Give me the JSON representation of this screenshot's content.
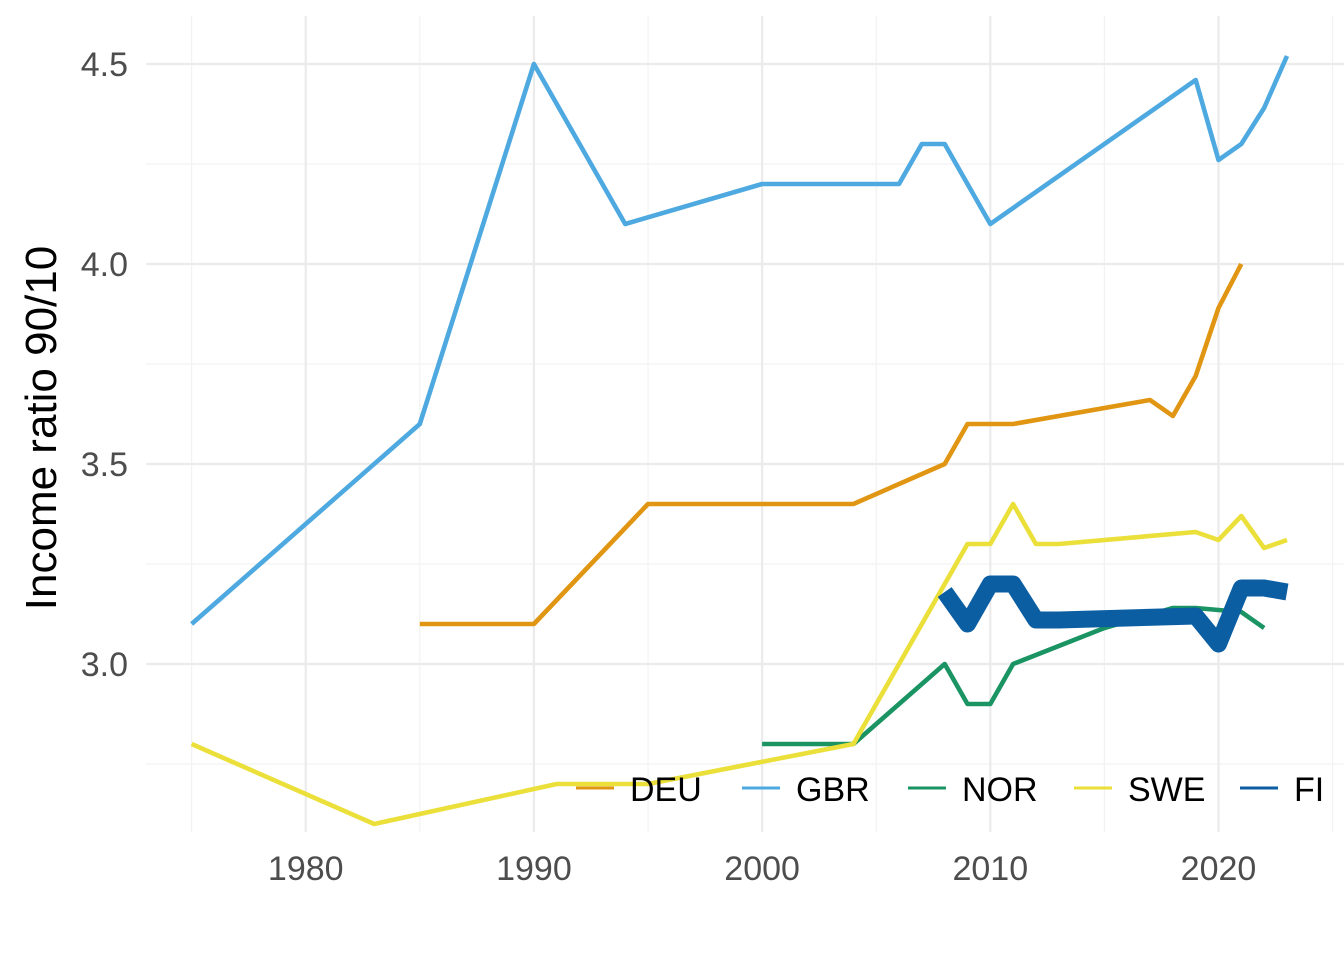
{
  "chart_data": {
    "type": "line",
    "title": "",
    "xlabel": "",
    "ylabel": "Income ratio 90/10",
    "xlim": [
      1973,
      2025.5
    ],
    "ylim": [
      2.58,
      4.62
    ],
    "x_ticks": [
      1980,
      1990,
      2000,
      2010,
      2020
    ],
    "x_tick_labels": [
      "1980",
      "1990",
      "2000",
      "2010",
      "2020"
    ],
    "x_minor_ticks": [
      1975,
      1985,
      1995,
      2005,
      2015,
      2025
    ],
    "y_ticks": [
      3.0,
      3.5,
      4.0,
      4.5
    ],
    "y_tick_labels": [
      "3.0",
      "3.5",
      "4.0",
      "4.5"
    ],
    "y_minor_ticks": [
      2.75,
      3.25,
      3.75,
      4.25
    ],
    "grid": true,
    "legend": {
      "placement": "bottom-right",
      "orientation": "horizontal",
      "visible_text_last": "FI"
    },
    "series": [
      {
        "name": "DEU",
        "color": "#e09612",
        "emphasis": false,
        "points": [
          [
            1985,
            3.1
          ],
          [
            1990,
            3.1
          ],
          [
            1995,
            3.4
          ],
          [
            2000,
            3.4
          ],
          [
            2004,
            3.4
          ],
          [
            2008,
            3.5
          ],
          [
            2009,
            3.6
          ],
          [
            2011,
            3.6
          ],
          [
            2017,
            3.66
          ],
          [
            2018,
            3.62
          ],
          [
            2019,
            3.72
          ],
          [
            2020,
            3.89
          ],
          [
            2021,
            4.0
          ]
        ]
      },
      {
        "name": "GBR",
        "color": "#4ea9e0",
        "emphasis": false,
        "points": [
          [
            1975,
            3.1
          ],
          [
            1985,
            3.6
          ],
          [
            1990,
            4.5
          ],
          [
            1994,
            4.1
          ],
          [
            2000,
            4.2
          ],
          [
            2006,
            4.2
          ],
          [
            2007,
            4.3
          ],
          [
            2008,
            4.3
          ],
          [
            2010,
            4.1
          ],
          [
            2019,
            4.46
          ],
          [
            2020,
            4.26
          ],
          [
            2021,
            4.3
          ],
          [
            2022,
            4.39
          ],
          [
            2023,
            4.52
          ]
        ]
      },
      {
        "name": "NOR",
        "color": "#1a9463",
        "emphasis": false,
        "points": [
          [
            2000,
            2.8
          ],
          [
            2004,
            2.8
          ],
          [
            2008,
            3.0
          ],
          [
            2009,
            2.9
          ],
          [
            2010,
            2.9
          ],
          [
            2011,
            3.0
          ],
          [
            2015,
            3.09
          ],
          [
            2018,
            3.14
          ],
          [
            2019,
            3.14
          ],
          [
            2021,
            3.13
          ],
          [
            2022,
            3.09
          ]
        ]
      },
      {
        "name": "SWE",
        "color": "#ebdf3a",
        "emphasis": false,
        "points": [
          [
            1975,
            2.8
          ],
          [
            1983,
            2.6
          ],
          [
            1991,
            2.7
          ],
          [
            1995,
            2.7
          ],
          [
            2004,
            2.8
          ],
          [
            2008,
            3.2
          ],
          [
            2009,
            3.3
          ],
          [
            2010,
            3.3
          ],
          [
            2011,
            3.4
          ],
          [
            2012,
            3.3
          ],
          [
            2013,
            3.3
          ],
          [
            2019,
            3.33
          ],
          [
            2020,
            3.31
          ],
          [
            2021,
            3.37
          ],
          [
            2022,
            3.29
          ],
          [
            2023,
            3.31
          ]
        ]
      },
      {
        "name": "FIN",
        "color": "#0b5ea2",
        "emphasis": true,
        "points": [
          [
            2008,
            3.18
          ],
          [
            2009,
            3.1
          ],
          [
            2010,
            3.2
          ],
          [
            2011,
            3.2
          ],
          [
            2012,
            3.11
          ],
          [
            2013,
            3.11
          ],
          [
            2019,
            3.12
          ],
          [
            2020,
            3.05
          ],
          [
            2021,
            3.19
          ],
          [
            2022,
            3.19
          ],
          [
            2023,
            3.18
          ]
        ]
      }
    ]
  }
}
